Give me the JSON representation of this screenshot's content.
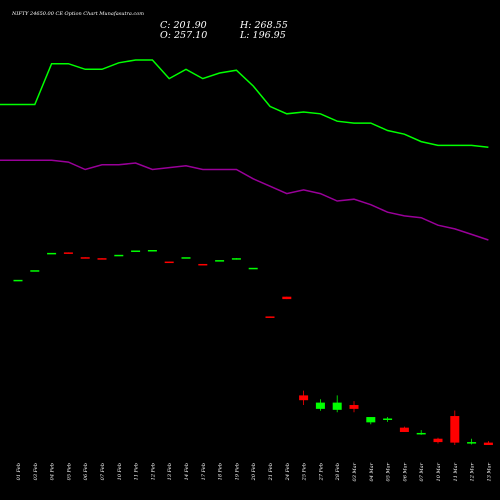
{
  "header": {
    "title": "NIFTY 24650.00 CE Option  Chart  Munafasutra.com",
    "open_label": "O: 257.10",
    "high_label": "H: 268.55",
    "close_label": "C: 201.90",
    "low_label": "L: 196.95"
  },
  "colors": {
    "background": "#000000",
    "up": "#00ff00",
    "down": "#ff0000",
    "green_line": "#00ff00",
    "purple_line": "#990099",
    "text": "#ffffff"
  },
  "chart_data": {
    "type": "candlestick",
    "title": "NIFTY 24650.00 CE Option  Chart  Munafasutra.com",
    "grid": false,
    "x": [
      "01 Feb",
      "03 Feb",
      "04 Feb",
      "05 Feb",
      "06 Feb",
      "07 Feb",
      "10 Feb",
      "11 Feb",
      "12 Feb",
      "13 Feb",
      "14 Feb",
      "17 Feb",
      "18 Feb",
      "19 Feb",
      "20 Feb",
      "21 Feb",
      "24 Feb",
      "25 Feb",
      "27 Feb",
      "28 Feb",
      "03 Mar",
      "04 Mar",
      "05 Mar",
      "06 Mar",
      "07 Mar",
      "10 Mar",
      "11 Mar",
      "12 Mar",
      "13 Mar"
    ],
    "candles": [
      {
        "o": 540,
        "h": 540,
        "l": 540,
        "c": 540
      },
      {
        "o": 560,
        "h": 560,
        "l": 560,
        "c": 560
      },
      {
        "o": 596,
        "h": 596,
        "l": 596,
        "c": 596
      },
      {
        "o": 597,
        "h": 597,
        "l": 595,
        "c": 595
      },
      {
        "o": 587,
        "h": 587,
        "l": 586,
        "c": 586
      },
      {
        "o": 585,
        "h": 585,
        "l": 584,
        "c": 584
      },
      {
        "o": 592,
        "h": 592,
        "l": 592,
        "c": 592
      },
      {
        "o": 601,
        "h": 601,
        "l": 601,
        "c": 601
      },
      {
        "o": 602,
        "h": 602,
        "l": 602,
        "c": 602
      },
      {
        "o": 578,
        "h": 578,
        "l": 575,
        "c": 575
      },
      {
        "o": 587,
        "h": 587,
        "l": 587,
        "c": 587
      },
      {
        "o": 573,
        "h": 573,
        "l": 572,
        "c": 572
      },
      {
        "o": 581,
        "h": 581,
        "l": 581,
        "c": 581
      },
      {
        "o": 582,
        "h": 585,
        "l": 582,
        "c": 585
      },
      {
        "o": 565,
        "h": 565,
        "l": 565,
        "c": 565
      },
      {
        "o": 464,
        "h": 464,
        "l": 462,
        "c": 462
      },
      {
        "o": 505,
        "h": 505,
        "l": 500,
        "c": 500
      },
      {
        "o": 300,
        "h": 310,
        "l": 280,
        "c": 290
      },
      {
        "o": 272,
        "h": 292,
        "l": 268,
        "c": 285
      },
      {
        "o": 270,
        "h": 300,
        "l": 265,
        "c": 285
      },
      {
        "o": 280,
        "h": 288,
        "l": 265,
        "c": 272
      },
      {
        "o": 244,
        "h": 255,
        "l": 240,
        "c": 255
      },
      {
        "o": 252,
        "h": 255,
        "l": 245,
        "c": 252
      },
      {
        "o": 233,
        "h": 235,
        "l": 224,
        "c": 224
      },
      {
        "o": 222,
        "h": 228,
        "l": 218,
        "c": 222
      },
      {
        "o": 210,
        "h": 212,
        "l": 200,
        "c": 203
      },
      {
        "o": 257.1,
        "h": 268.55,
        "l": 196.95,
        "c": 201.9
      },
      {
        "o": 201,
        "h": 210,
        "l": 198,
        "c": 203
      },
      {
        "o": 201.9,
        "h": 205,
        "l": 196.95,
        "c": 196.95
      }
    ],
    "series": [
      {
        "values": [
          24600,
          24600,
          24820,
          24820,
          24790,
          24790,
          24825,
          24840,
          24840,
          24740,
          24790,
          24740,
          24770,
          24785,
          24700,
          24590,
          24550,
          24560,
          24550,
          24510,
          24500,
          24500,
          24460,
          24440,
          24400,
          24380,
          24380,
          24380,
          24370
        ]
      },
      {
        "values": [
          24300,
          24300,
          24300,
          24290,
          24250,
          24275,
          24275,
          24285,
          24250,
          24260,
          24270,
          24250,
          24250,
          24250,
          24200,
          24160,
          24120,
          24140,
          24120,
          24080,
          24090,
          24060,
          24020,
          24000,
          23990,
          23950,
          23930,
          23900,
          23870
        ]
      }
    ]
  }
}
